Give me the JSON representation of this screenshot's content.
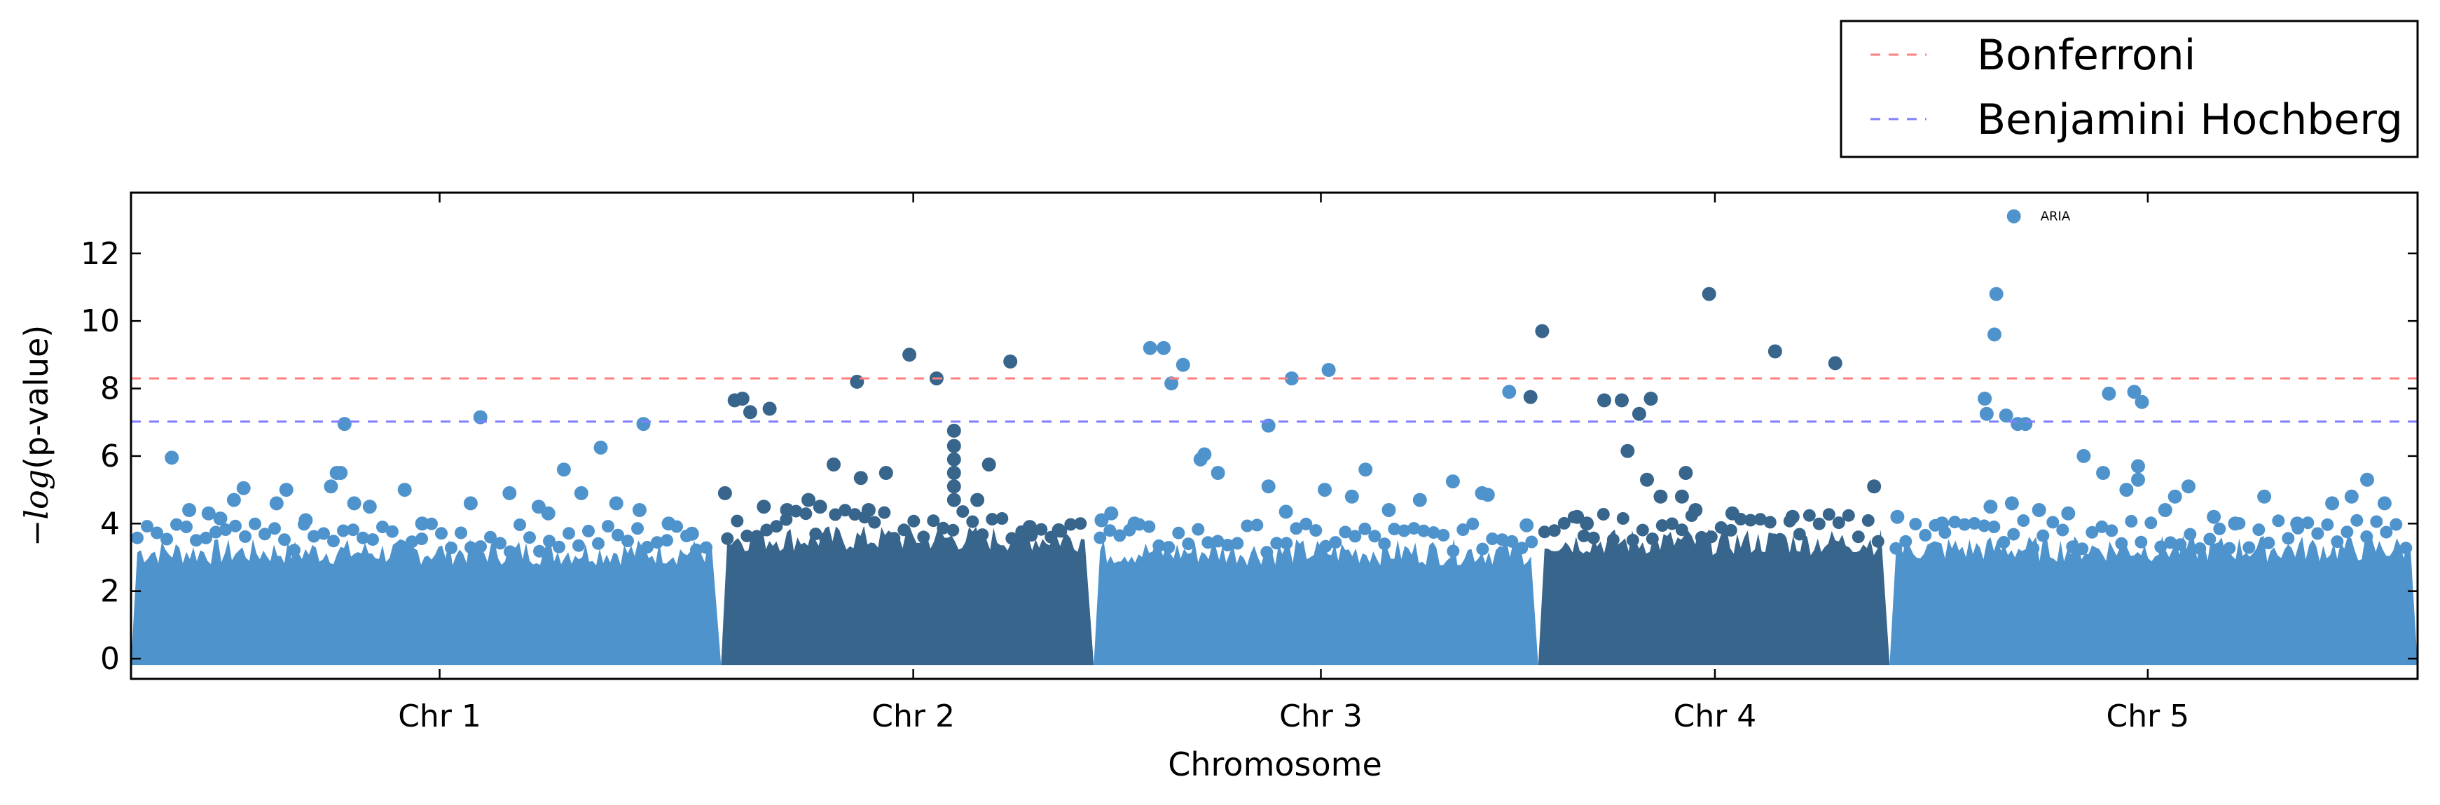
{
  "chart_data": {
    "type": "scatter",
    "title": "",
    "xlabel": "Chromosome",
    "ylabel_math": "−log",
    "ylabel_rest": "(p-value)",
    "ylim": [
      -0.6,
      13.8
    ],
    "yticks": [
      0,
      2,
      4,
      6,
      8,
      10,
      12
    ],
    "grid": false,
    "legend_position": "top-right, above plot",
    "thresholds": [
      {
        "name": "Bonferroni",
        "y": 8.3,
        "color": "#ff7f7f",
        "style": "dashed"
      },
      {
        "name": "Benjamini Hochberg",
        "y": 7.02,
        "color": "#7f7fff",
        "style": "dashed"
      }
    ],
    "chromosomes": [
      {
        "label": "Chr 1",
        "range": [
          0,
          30.4
        ],
        "center": 15.9,
        "color": "#4f93cd",
        "bulk_height": 3.0
      },
      {
        "label": "Chr 2",
        "range": [
          30.4,
          49.6
        ],
        "center": 40.3,
        "color": "#38658c",
        "bulk_height": 3.4
      },
      {
        "label": "Chr 3",
        "range": [
          49.6,
          72.5
        ],
        "center": 61.3,
        "color": "#4f93cd",
        "bulk_height": 3.0
      },
      {
        "label": "Chr 4",
        "range": [
          72.5,
          90.6
        ],
        "center": 81.6,
        "color": "#38658c",
        "bulk_height": 3.3
      },
      {
        "label": "Chr 5",
        "range": [
          90.6,
          117.8
        ],
        "center": 103.9,
        "color": "#4f93cd",
        "bulk_height": 3.1
      }
    ],
    "xlim": [
      0,
      117.8
    ],
    "annotations": [
      {
        "text": "ARIA",
        "x": 97.0,
        "y": 13.1
      }
    ],
    "points": [
      {
        "chr": 1,
        "x": 2.1,
        "y": 5.95
      },
      {
        "chr": 1,
        "x": 3.0,
        "y": 4.4
      },
      {
        "chr": 1,
        "x": 4.0,
        "y": 4.3
      },
      {
        "chr": 1,
        "x": 4.6,
        "y": 4.15
      },
      {
        "chr": 1,
        "x": 5.3,
        "y": 4.7
      },
      {
        "chr": 1,
        "x": 5.8,
        "y": 5.05
      },
      {
        "chr": 1,
        "x": 7.5,
        "y": 4.6
      },
      {
        "chr": 1,
        "x": 8.0,
        "y": 5.0
      },
      {
        "chr": 1,
        "x": 9.0,
        "y": 4.1
      },
      {
        "chr": 1,
        "x": 10.3,
        "y": 5.1
      },
      {
        "chr": 1,
        "x": 10.6,
        "y": 5.5
      },
      {
        "chr": 1,
        "x": 10.8,
        "y": 5.5
      },
      {
        "chr": 1,
        "x": 11.0,
        "y": 6.95
      },
      {
        "chr": 1,
        "x": 11.5,
        "y": 4.6
      },
      {
        "chr": 1,
        "x": 12.3,
        "y": 4.5
      },
      {
        "chr": 1,
        "x": 14.1,
        "y": 5.0
      },
      {
        "chr": 1,
        "x": 15.0,
        "y": 4.0
      },
      {
        "chr": 1,
        "x": 17.5,
        "y": 4.6
      },
      {
        "chr": 1,
        "x": 18.0,
        "y": 7.15
      },
      {
        "chr": 1,
        "x": 19.5,
        "y": 4.9
      },
      {
        "chr": 1,
        "x": 21.0,
        "y": 4.5
      },
      {
        "chr": 1,
        "x": 21.5,
        "y": 4.3
      },
      {
        "chr": 1,
        "x": 22.3,
        "y": 5.6
      },
      {
        "chr": 1,
        "x": 23.2,
        "y": 4.9
      },
      {
        "chr": 1,
        "x": 24.2,
        "y": 6.25
      },
      {
        "chr": 1,
        "x": 25.0,
        "y": 4.6
      },
      {
        "chr": 1,
        "x": 26.4,
        "y": 6.95
      },
      {
        "chr": 1,
        "x": 26.2,
        "y": 4.4
      },
      {
        "chr": 1,
        "x": 27.7,
        "y": 4.0
      },
      {
        "chr": 1,
        "x": 28.9,
        "y": 3.7
      },
      {
        "chr": 2,
        "x": 30.6,
        "y": 4.9
      },
      {
        "chr": 2,
        "x": 31.1,
        "y": 7.65
      },
      {
        "chr": 2,
        "x": 31.5,
        "y": 7.7
      },
      {
        "chr": 2,
        "x": 31.9,
        "y": 7.3
      },
      {
        "chr": 2,
        "x": 32.9,
        "y": 7.4
      },
      {
        "chr": 2,
        "x": 32.6,
        "y": 4.5
      },
      {
        "chr": 2,
        "x": 33.8,
        "y": 4.4
      },
      {
        "chr": 2,
        "x": 34.9,
        "y": 4.7
      },
      {
        "chr": 2,
        "x": 35.5,
        "y": 4.5
      },
      {
        "chr": 2,
        "x": 36.2,
        "y": 5.75
      },
      {
        "chr": 2,
        "x": 37.4,
        "y": 8.2
      },
      {
        "chr": 2,
        "x": 37.6,
        "y": 5.35
      },
      {
        "chr": 2,
        "x": 38.0,
        "y": 4.4
      },
      {
        "chr": 2,
        "x": 38.9,
        "y": 5.5
      },
      {
        "chr": 2,
        "x": 40.1,
        "y": 9.0
      },
      {
        "chr": 2,
        "x": 41.5,
        "y": 8.3
      },
      {
        "chr": 2,
        "x": 42.4,
        "y": 6.75
      },
      {
        "chr": 2,
        "x": 42.4,
        "y": 6.3
      },
      {
        "chr": 2,
        "x": 42.4,
        "y": 5.9
      },
      {
        "chr": 2,
        "x": 42.4,
        "y": 5.5
      },
      {
        "chr": 2,
        "x": 42.4,
        "y": 5.1
      },
      {
        "chr": 2,
        "x": 42.4,
        "y": 4.7
      },
      {
        "chr": 2,
        "x": 43.6,
        "y": 4.7
      },
      {
        "chr": 2,
        "x": 44.2,
        "y": 5.75
      },
      {
        "chr": 2,
        "x": 45.3,
        "y": 8.8
      },
      {
        "chr": 2,
        "x": 46.3,
        "y": 3.9
      },
      {
        "chr": 2,
        "x": 47.8,
        "y": 3.8
      },
      {
        "chr": 3,
        "x": 50.0,
        "y": 4.1
      },
      {
        "chr": 3,
        "x": 50.5,
        "y": 4.3
      },
      {
        "chr": 3,
        "x": 51.7,
        "y": 4.0
      },
      {
        "chr": 3,
        "x": 52.5,
        "y": 9.2
      },
      {
        "chr": 3,
        "x": 53.2,
        "y": 9.2
      },
      {
        "chr": 3,
        "x": 53.6,
        "y": 8.15
      },
      {
        "chr": 3,
        "x": 54.2,
        "y": 8.7
      },
      {
        "chr": 3,
        "x": 55.1,
        "y": 5.9
      },
      {
        "chr": 3,
        "x": 55.3,
        "y": 6.05
      },
      {
        "chr": 3,
        "x": 56.0,
        "y": 5.5
      },
      {
        "chr": 3,
        "x": 58.6,
        "y": 6.9
      },
      {
        "chr": 3,
        "x": 58.6,
        "y": 5.1
      },
      {
        "chr": 3,
        "x": 59.8,
        "y": 8.3
      },
      {
        "chr": 3,
        "x": 59.5,
        "y": 4.35
      },
      {
        "chr": 3,
        "x": 61.5,
        "y": 5.0
      },
      {
        "chr": 3,
        "x": 61.7,
        "y": 8.55
      },
      {
        "chr": 3,
        "x": 62.9,
        "y": 4.8
      },
      {
        "chr": 3,
        "x": 63.6,
        "y": 5.6
      },
      {
        "chr": 3,
        "x": 64.8,
        "y": 4.4
      },
      {
        "chr": 3,
        "x": 66.4,
        "y": 4.7
      },
      {
        "chr": 3,
        "x": 68.1,
        "y": 5.25
      },
      {
        "chr": 3,
        "x": 69.6,
        "y": 4.9
      },
      {
        "chr": 3,
        "x": 69.9,
        "y": 4.85
      },
      {
        "chr": 3,
        "x": 71.0,
        "y": 7.9
      },
      {
        "chr": 3,
        "x": 71.9,
        "y": 3.95
      },
      {
        "chr": 4,
        "x": 72.1,
        "y": 7.75
      },
      {
        "chr": 4,
        "x": 72.7,
        "y": 9.7
      },
      {
        "chr": 4,
        "x": 74.5,
        "y": 4.2
      },
      {
        "chr": 4,
        "x": 75.0,
        "y": 4.0
      },
      {
        "chr": 4,
        "x": 75.9,
        "y": 7.65
      },
      {
        "chr": 4,
        "x": 76.8,
        "y": 7.65
      },
      {
        "chr": 4,
        "x": 77.1,
        "y": 6.15
      },
      {
        "chr": 4,
        "x": 77.7,
        "y": 7.25
      },
      {
        "chr": 4,
        "x": 78.3,
        "y": 7.7
      },
      {
        "chr": 4,
        "x": 78.1,
        "y": 5.3
      },
      {
        "chr": 4,
        "x": 78.8,
        "y": 4.8
      },
      {
        "chr": 4,
        "x": 80.1,
        "y": 5.5
      },
      {
        "chr": 4,
        "x": 79.9,
        "y": 4.8
      },
      {
        "chr": 4,
        "x": 80.6,
        "y": 4.4
      },
      {
        "chr": 4,
        "x": 81.3,
        "y": 10.8
      },
      {
        "chr": 4,
        "x": 82.5,
        "y": 4.3
      },
      {
        "chr": 4,
        "x": 84.7,
        "y": 9.1
      },
      {
        "chr": 4,
        "x": 85.6,
        "y": 4.2
      },
      {
        "chr": 4,
        "x": 87.8,
        "y": 8.75
      },
      {
        "chr": 4,
        "x": 89.8,
        "y": 5.1
      },
      {
        "chr": 5,
        "x": 91.0,
        "y": 4.2
      },
      {
        "chr": 5,
        "x": 93.3,
        "y": 4.0
      },
      {
        "chr": 5,
        "x": 95.5,
        "y": 7.7
      },
      {
        "chr": 5,
        "x": 95.6,
        "y": 7.25
      },
      {
        "chr": 5,
        "x": 96.1,
        "y": 10.8
      },
      {
        "chr": 5,
        "x": 96.0,
        "y": 9.6
      },
      {
        "chr": 5,
        "x": 96.6,
        "y": 7.2
      },
      {
        "chr": 5,
        "x": 97.2,
        "y": 6.95
      },
      {
        "chr": 5,
        "x": 97.6,
        "y": 6.95
      },
      {
        "chr": 5,
        "x": 95.8,
        "y": 4.5
      },
      {
        "chr": 5,
        "x": 96.9,
        "y": 4.6
      },
      {
        "chr": 5,
        "x": 98.3,
        "y": 4.4
      },
      {
        "chr": 5,
        "x": 99.8,
        "y": 4.3
      },
      {
        "chr": 5,
        "x": 100.6,
        "y": 6.0
      },
      {
        "chr": 5,
        "x": 101.6,
        "y": 5.5
      },
      {
        "chr": 5,
        "x": 101.9,
        "y": 7.85
      },
      {
        "chr": 5,
        "x": 102.8,
        "y": 5.0
      },
      {
        "chr": 5,
        "x": 103.2,
        "y": 7.9
      },
      {
        "chr": 5,
        "x": 103.6,
        "y": 7.6
      },
      {
        "chr": 5,
        "x": 103.4,
        "y": 5.7
      },
      {
        "chr": 5,
        "x": 103.4,
        "y": 5.3
      },
      {
        "chr": 5,
        "x": 104.8,
        "y": 4.4
      },
      {
        "chr": 5,
        "x": 105.3,
        "y": 4.8
      },
      {
        "chr": 5,
        "x": 106.0,
        "y": 5.1
      },
      {
        "chr": 5,
        "x": 107.3,
        "y": 4.2
      },
      {
        "chr": 5,
        "x": 108.4,
        "y": 4.0
      },
      {
        "chr": 5,
        "x": 109.9,
        "y": 4.8
      },
      {
        "chr": 5,
        "x": 111.6,
        "y": 4.0
      },
      {
        "chr": 5,
        "x": 113.4,
        "y": 4.6
      },
      {
        "chr": 5,
        "x": 114.4,
        "y": 4.8
      },
      {
        "chr": 5,
        "x": 115.2,
        "y": 5.3
      },
      {
        "chr": 5,
        "x": 116.1,
        "y": 4.6
      }
    ]
  }
}
